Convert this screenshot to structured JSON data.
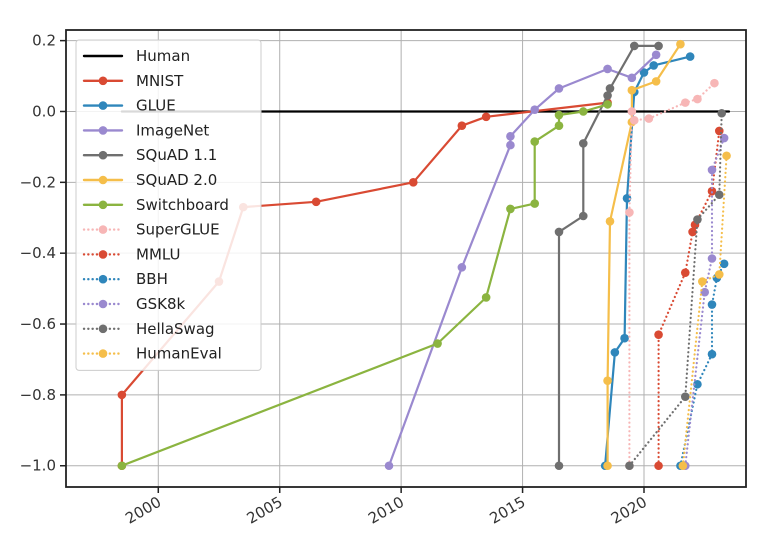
{
  "chart_data": {
    "type": "line",
    "title": "",
    "xlabel": "",
    "ylabel": "",
    "xlim": [
      1996.2,
      2024.2
    ],
    "ylim": [
      -1.06,
      0.23
    ],
    "x_ticks": [
      2000,
      2005,
      2010,
      2015,
      2020
    ],
    "x_tick_labels": [
      "2000",
      "2005",
      "2010",
      "2015",
      "2020"
    ],
    "y_ticks": [
      0.2,
      0.0,
      -0.2,
      -0.4,
      -0.6,
      -0.8,
      -1.0
    ],
    "y_tick_labels": [
      "0.2",
      "0.0",
      "−0.2",
      "−0.4",
      "−0.6",
      "−0.8",
      "−1.0"
    ],
    "grid": true,
    "legend_position": "upper-left",
    "series": [
      {
        "name": "Human",
        "color": "#000000",
        "style": "solid",
        "markers": false,
        "points": [
          [
            1998.5,
            0.0
          ],
          [
            2023.5,
            0.0
          ]
        ]
      },
      {
        "name": "MNIST",
        "color": "#d94a33",
        "style": "solid",
        "markers": true,
        "points": [
          [
            1998.5,
            -1.0
          ],
          [
            1998.5,
            -0.8
          ],
          [
            2002.5,
            -0.48
          ],
          [
            2003.5,
            -0.27
          ],
          [
            2006.5,
            -0.255
          ],
          [
            2010.5,
            -0.2
          ],
          [
            2012.5,
            -0.04
          ],
          [
            2013.5,
            -0.015
          ],
          [
            2018.5,
            0.025
          ]
        ]
      },
      {
        "name": "GLUE",
        "color": "#2f86bb",
        "style": "solid",
        "markers": true,
        "points": [
          [
            2018.4,
            -1.0
          ],
          [
            2018.8,
            -0.68
          ],
          [
            2019.2,
            -0.64
          ],
          [
            2019.3,
            -0.245
          ],
          [
            2019.6,
            0.055
          ],
          [
            2020.0,
            0.11
          ],
          [
            2020.4,
            0.13
          ],
          [
            2021.9,
            0.155
          ]
        ]
      },
      {
        "name": "ImageNet",
        "color": "#9a89cf",
        "style": "solid",
        "markers": true,
        "points": [
          [
            2009.5,
            -1.0
          ],
          [
            2012.5,
            -0.44
          ],
          [
            2014.5,
            -0.095
          ],
          [
            2014.5,
            -0.07
          ],
          [
            2015.5,
            0.005
          ],
          [
            2016.5,
            0.065
          ],
          [
            2018.5,
            0.12
          ],
          [
            2019.5,
            0.095
          ],
          [
            2020.5,
            0.16
          ]
        ]
      },
      {
        "name": "SQuAD 1.1",
        "color": "#6f6f6f",
        "style": "solid",
        "markers": true,
        "points": [
          [
            2016.5,
            -1.0
          ],
          [
            2016.5,
            -0.34
          ],
          [
            2017.5,
            -0.295
          ],
          [
            2017.5,
            -0.09
          ],
          [
            2018.5,
            0.045
          ],
          [
            2018.6,
            0.065
          ],
          [
            2019.6,
            0.185
          ],
          [
            2020.6,
            0.185
          ]
        ]
      },
      {
        "name": "SQuAD 2.0",
        "color": "#f5be4a",
        "style": "solid",
        "markers": true,
        "points": [
          [
            2018.5,
            -1.0
          ],
          [
            2018.5,
            -0.76
          ],
          [
            2018.6,
            -0.31
          ],
          [
            2019.5,
            -0.03
          ],
          [
            2019.5,
            0.06
          ],
          [
            2020.5,
            0.085
          ],
          [
            2021.5,
            0.19
          ]
        ]
      },
      {
        "name": "Switchboard",
        "color": "#8bb440",
        "style": "solid",
        "markers": true,
        "points": [
          [
            1998.5,
            -1.0
          ],
          [
            2011.5,
            -0.655
          ],
          [
            2013.5,
            -0.525
          ],
          [
            2014.5,
            -0.275
          ],
          [
            2015.5,
            -0.26
          ],
          [
            2015.5,
            -0.085
          ],
          [
            2016.5,
            -0.04
          ],
          [
            2016.5,
            -0.01
          ],
          [
            2017.5,
            0.0
          ],
          [
            2018.5,
            0.02
          ]
        ]
      },
      {
        "name": "SuperGLUE",
        "color": "#f7b6b6",
        "style": "dotted",
        "markers": true,
        "points": [
          [
            2019.4,
            -1.0
          ],
          [
            2019.4,
            -0.285
          ],
          [
            2019.5,
            0.0
          ],
          [
            2019.6,
            -0.025
          ],
          [
            2020.2,
            -0.02
          ],
          [
            2021.7,
            0.025
          ],
          [
            2022.2,
            0.035
          ],
          [
            2022.9,
            0.08
          ]
        ]
      },
      {
        "name": "MMLU",
        "color": "#d94a33",
        "style": "dotted",
        "markers": true,
        "points": [
          [
            2020.6,
            -1.0
          ],
          [
            2020.6,
            -0.63
          ],
          [
            2021.7,
            -0.455
          ],
          [
            2022.0,
            -0.34
          ],
          [
            2022.1,
            -0.32
          ],
          [
            2022.8,
            -0.225
          ],
          [
            2023.1,
            -0.055
          ]
        ]
      },
      {
        "name": "BBH",
        "color": "#2f86bb",
        "style": "dotted",
        "markers": true,
        "points": [
          [
            2021.5,
            -1.0
          ],
          [
            2022.2,
            -0.77
          ],
          [
            2022.8,
            -0.685
          ],
          [
            2022.8,
            -0.545
          ],
          [
            2023.0,
            -0.47
          ],
          [
            2023.3,
            -0.43
          ]
        ]
      },
      {
        "name": "GSK8k",
        "color": "#9a89cf",
        "style": "dotted",
        "markers": true,
        "points": [
          [
            2021.7,
            -1.0
          ],
          [
            2022.5,
            -0.51
          ],
          [
            2022.8,
            -0.415
          ],
          [
            2022.8,
            -0.165
          ],
          [
            2023.3,
            -0.075
          ]
        ]
      },
      {
        "name": "HellaSwag",
        "color": "#6f6f6f",
        "style": "dotted",
        "markers": true,
        "points": [
          [
            2019.4,
            -1.0
          ],
          [
            2021.7,
            -0.805
          ],
          [
            2022.2,
            -0.305
          ],
          [
            2023.1,
            -0.235
          ],
          [
            2023.2,
            -0.005
          ]
        ]
      },
      {
        "name": "HumanEval",
        "color": "#f5be4a",
        "style": "dotted",
        "markers": true,
        "points": [
          [
            2021.6,
            -1.0
          ],
          [
            2022.4,
            -0.48
          ],
          [
            2023.1,
            -0.46
          ],
          [
            2023.4,
            -0.125
          ]
        ]
      }
    ]
  }
}
